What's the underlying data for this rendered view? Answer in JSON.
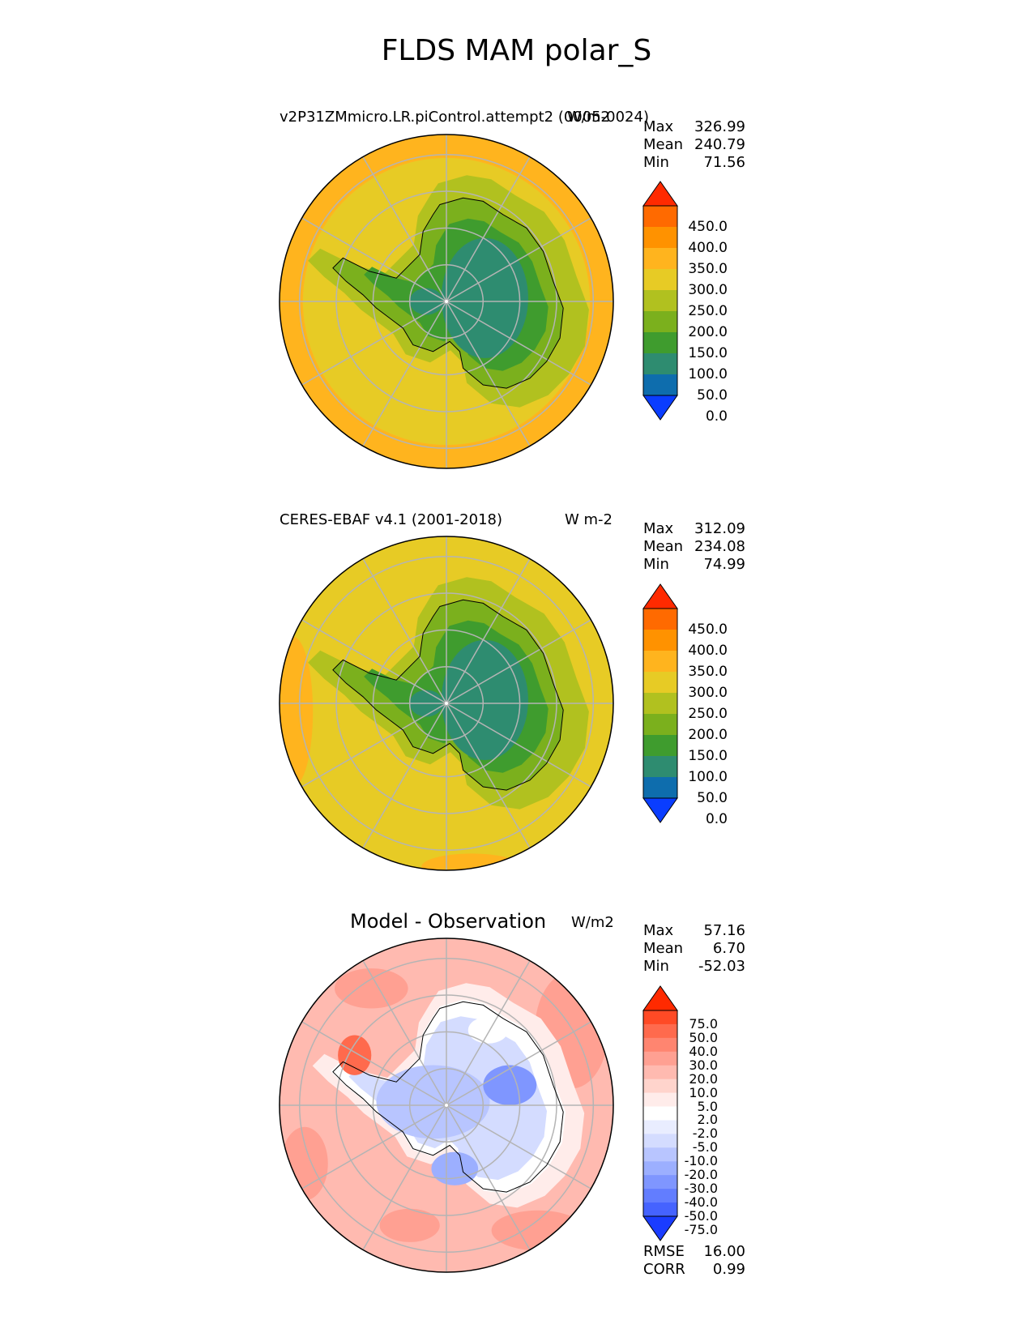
{
  "figure_title": "FLDS MAM polar_S",
  "panels": [
    {
      "title": "v2P31ZMmicro.LR.piControl.attempt2 (0005-0024)",
      "units": "W/m2",
      "stats": {
        "max_label": "Max",
        "max": "326.99",
        "mean_label": "Mean",
        "mean": "240.79",
        "min_label": "Min",
        "min": "71.56"
      },
      "colorbar_ticks": [
        "450.0",
        "400.0",
        "350.0",
        "300.0",
        "250.0",
        "200.0",
        "150.0",
        "100.0",
        "50.0",
        "0.0"
      ]
    },
    {
      "title": "CERES-EBAF v4.1 (2001-2018)",
      "units": "W m-2",
      "stats": {
        "max_label": "Max",
        "max": "312.09",
        "mean_label": "Mean",
        "mean": "234.08",
        "min_label": "Min",
        "min": "74.99"
      },
      "colorbar_ticks": [
        "450.0",
        "400.0",
        "350.0",
        "300.0",
        "250.0",
        "200.0",
        "150.0",
        "100.0",
        "50.0",
        "0.0"
      ]
    },
    {
      "title": "Model - Observation",
      "units": "W/m2",
      "stats": {
        "max_label": "Max",
        "max": "57.16",
        "mean_label": "Mean",
        "mean": "6.70",
        "min_label": "Min",
        "min": "-52.03"
      },
      "colorbar_ticks": [
        "75.0",
        "50.0",
        "40.0",
        "30.0",
        "20.0",
        "10.0",
        "5.0",
        "2.0",
        "-2.0",
        "-5.0",
        "-10.0",
        "-20.0",
        "-30.0",
        "-40.0",
        "-50.0",
        "-75.0"
      ],
      "rmse_label": "RMSE",
      "rmse": "16.00",
      "corr_label": "CORR",
      "corr": "0.99"
    }
  ],
  "colors": {
    "field_colormap": [
      "#ff2a00",
      "#ff6a00",
      "#ff9200",
      "#ffb41e",
      "#e7cb25",
      "#b1c11f",
      "#7bb01d",
      "#3f9c2e",
      "#2e8c70",
      "#0e6dad",
      "#0a3dff"
    ],
    "diff_colormap": [
      "#ff2a00",
      "#ff4a25",
      "#ff6a4d",
      "#ff8570",
      "#ffa092",
      "#ffbab0",
      "#ffd4cc",
      "#ffecea",
      "#ffffff",
      "#e9edff",
      "#d4dcff",
      "#b8c5ff",
      "#9cafff",
      "#7f96ff",
      "#627dff",
      "#4563ff",
      "#1a3cff"
    ]
  },
  "chart_data": [
    {
      "type": "heatmap",
      "projection": "south-polar-stereographic",
      "title": "v2P31ZMmicro.LR.piControl.attempt2 (0005-0024)",
      "units": "W/m2",
      "max": 326.99,
      "mean": 240.79,
      "min": 71.56,
      "colorbar_levels": [
        0,
        50,
        100,
        150,
        200,
        250,
        300,
        350,
        400,
        450
      ],
      "colorbar_extend": "both"
    },
    {
      "type": "heatmap",
      "projection": "south-polar-stereographic",
      "title": "CERES-EBAF v4.1 (2001-2018)",
      "units": "W m-2",
      "max": 312.09,
      "mean": 234.08,
      "min": 74.99,
      "colorbar_levels": [
        0,
        50,
        100,
        150,
        200,
        250,
        300,
        350,
        400,
        450
      ],
      "colorbar_extend": "both"
    },
    {
      "type": "heatmap",
      "projection": "south-polar-stereographic",
      "title": "Model - Observation",
      "units": "W/m2",
      "max": 57.16,
      "mean": 6.7,
      "min": -52.03,
      "rmse": 16.0,
      "corr": 0.99,
      "colorbar_levels": [
        -75,
        -50,
        -40,
        -30,
        -20,
        -10,
        -5,
        -2,
        2,
        5,
        10,
        20,
        30,
        40,
        50,
        75
      ],
      "colorbar_extend": "both"
    }
  ]
}
